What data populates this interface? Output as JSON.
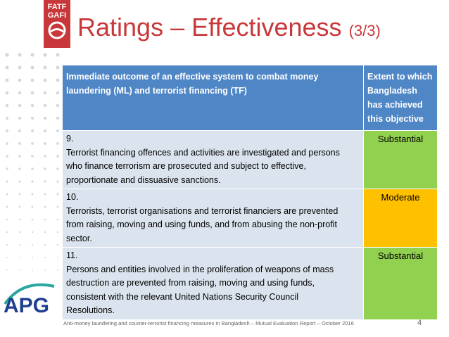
{
  "logos": {
    "fatf": "FATF",
    "gafi": "GAFI",
    "apg": "APG"
  },
  "header": {
    "title": "Ratings – Effectiveness",
    "subtitle": "(3/3)"
  },
  "table": {
    "columns": [
      "Immediate outcome of an effective system to combat money laundering (ML) and terrorist financing (TF)",
      "Extent to which Bangladesh has achieved this objective"
    ],
    "rows": [
      [
        "9.",
        "Terrorist financing offences and activities are investigated and persons who finance terrorism are prosecuted and subject to effective, proportionate and dissuasive sanctions.",
        "Substantial"
      ],
      [
        "10.",
        "Terrorists, terrorist organisations and terrorist financiers are prevented from raising, moving and using funds, and from abusing the non-profit sector.",
        "Moderate"
      ],
      [
        "11.",
        "Persons and entities involved in the proliferation of weapons of mass destruction are prevented from raising, moving and using funds, consistent with the relevant United Nations Security Council Resolutions.",
        "Substantial"
      ]
    ]
  },
  "footer": {
    "text": "Anti-money laundering and counter-terrorist financing measures in Bangladesh – Mutual Evaluation Report – October 2016",
    "page": "4"
  }
}
